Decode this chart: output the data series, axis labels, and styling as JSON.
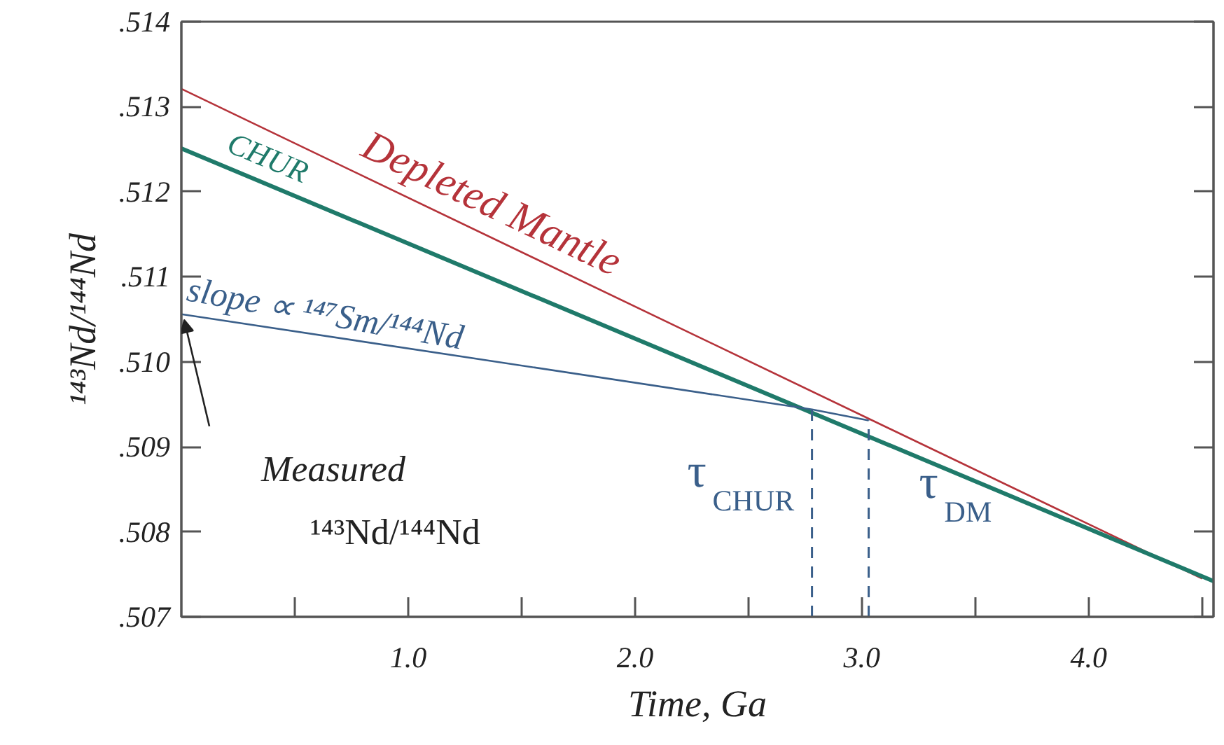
{
  "chart_data": {
    "type": "line",
    "xlabel": "Time, Ga",
    "ylabel": "¹⁴³Nd/¹⁴⁴Nd",
    "xlim": [
      0,
      4.55
    ],
    "ylim": [
      0.507,
      0.514
    ],
    "xticks": [
      {
        "value": 0.5,
        "label": null
      },
      {
        "value": 1,
        "label": "1.0"
      },
      {
        "value": 1.5,
        "label": null
      },
      {
        "value": 2,
        "label": "2.0"
      },
      {
        "value": 2.5,
        "label": null
      },
      {
        "value": 3,
        "label": "3.0"
      },
      {
        "value": 3.5,
        "label": null
      },
      {
        "value": 4,
        "label": "4.0"
      },
      {
        "value": 4.5,
        "label": null
      }
    ],
    "yticks": [
      {
        "value": 0.507,
        "label": ".507"
      },
      {
        "value": 0.508,
        "label": ".508"
      },
      {
        "value": 0.509,
        "label": ".509"
      },
      {
        "value": 0.51,
        "label": ".510"
      },
      {
        "value": 0.511,
        "label": ".511"
      },
      {
        "value": 0.512,
        "label": ".512"
      },
      {
        "value": 0.513,
        "label": ".513"
      },
      {
        "value": 0.514,
        "label": ".514"
      }
    ],
    "series": [
      {
        "name": "Depleted Mantle",
        "color": "#b5333a",
        "x": [
          0,
          4.5
        ],
        "values": [
          0.51321,
          0.50745
        ]
      },
      {
        "name": "CHUR",
        "color": "#1f7a6a",
        "x": [
          0,
          4.55
        ],
        "values": [
          0.51251,
          0.50742
        ]
      },
      {
        "color": "#3a5f8a",
        "x": [
          0,
          2.78,
          3.03
        ],
        "values": [
          0.51056,
          0.50944,
          0.50931
        ]
      }
    ],
    "ref_lines": [
      {
        "axis": "x",
        "value": 2.78,
        "label": "τ$_{CHUR}$",
        "color": "#3a5f8a",
        "line_style": "dashed"
      },
      {
        "axis": "x",
        "value": 3.03,
        "label": "τ$_{DM}$",
        "color": "#3a5f8a",
        "line_style": "dashed"
      }
    ],
    "annotations": [
      "slope ∝ ¹⁴⁷Sm/¹⁴⁴Nd",
      "Measured\n¹⁴³Nd/¹⁴⁴Nd"
    ],
    "grid": false,
    "legend": false,
    "marker": "none",
    "line_style": "solid"
  }
}
